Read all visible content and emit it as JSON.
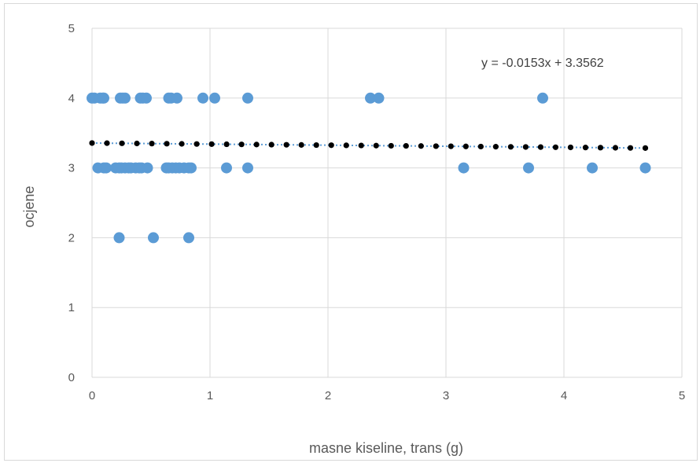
{
  "chart_data": {
    "type": "scatter",
    "xlabel": "masne kiseline, trans (g)",
    "ylabel": "ocjene",
    "xlim": [
      0,
      5
    ],
    "ylim": [
      0,
      5
    ],
    "x_ticks": [
      "0",
      "1",
      "2",
      "3",
      "4",
      "5"
    ],
    "y_ticks": [
      "0",
      "1",
      "2",
      "3",
      "4",
      "5"
    ],
    "grid": true,
    "legend": "none",
    "colors": {
      "points": "#5b9bd5",
      "trend_line": "#5b9bd5",
      "trend_markers": "#000000",
      "grid": "#d9d9d9",
      "text": "#595959"
    },
    "series": [
      {
        "values": [
          [
            0.0,
            4
          ],
          [
            0.02,
            4
          ],
          [
            0.07,
            4
          ],
          [
            0.09,
            4
          ],
          [
            0.1,
            4
          ],
          [
            0.24,
            4
          ],
          [
            0.26,
            4
          ],
          [
            0.28,
            4
          ],
          [
            0.41,
            4
          ],
          [
            0.43,
            4
          ],
          [
            0.46,
            4
          ],
          [
            0.65,
            4
          ],
          [
            0.67,
            4
          ],
          [
            0.72,
            4
          ],
          [
            0.94,
            4
          ],
          [
            1.04,
            4
          ],
          [
            1.32,
            4
          ],
          [
            2.36,
            4
          ],
          [
            2.43,
            4
          ],
          [
            3.82,
            4
          ],
          [
            0.05,
            3
          ],
          [
            0.1,
            3
          ],
          [
            0.12,
            3
          ],
          [
            0.2,
            3
          ],
          [
            0.23,
            3
          ],
          [
            0.25,
            3
          ],
          [
            0.28,
            3
          ],
          [
            0.31,
            3
          ],
          [
            0.33,
            3
          ],
          [
            0.37,
            3
          ],
          [
            0.4,
            3
          ],
          [
            0.42,
            3
          ],
          [
            0.47,
            3
          ],
          [
            0.63,
            3
          ],
          [
            0.65,
            3
          ],
          [
            0.68,
            3
          ],
          [
            0.71,
            3
          ],
          [
            0.74,
            3
          ],
          [
            0.78,
            3
          ],
          [
            0.82,
            3
          ],
          [
            0.84,
            3
          ],
          [
            1.14,
            3
          ],
          [
            1.32,
            3
          ],
          [
            3.15,
            3
          ],
          [
            3.7,
            3
          ],
          [
            4.24,
            3
          ],
          [
            4.69,
            3
          ],
          [
            0.23,
            2
          ],
          [
            0.52,
            2
          ],
          [
            0.82,
            2
          ]
        ]
      }
    ],
    "trendline": {
      "type": "linear",
      "slope": -0.0153,
      "intercept": 3.3562,
      "x_range": [
        0,
        4.69
      ],
      "equation_label": "y = -0.0153x + 3.3562"
    }
  }
}
